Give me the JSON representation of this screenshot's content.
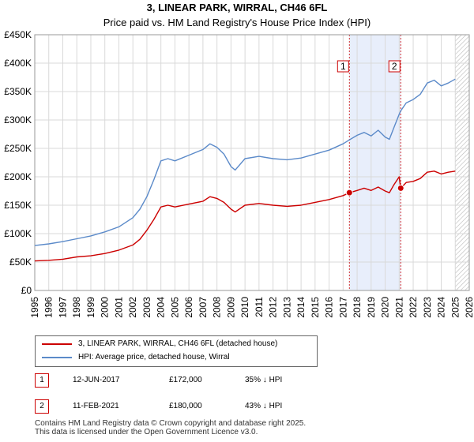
{
  "chart_data": {
    "type": "line",
    "title": "3, LINEAR PARK, WIRRAL, CH46 6FL",
    "subtitle": "Price paid vs. HM Land Registry's House Price Index (HPI)",
    "xlabel": "",
    "ylabel": "",
    "xlim": [
      1995,
      2026
    ],
    "ylim": [
      0,
      450000
    ],
    "y_ticks": [
      0,
      50000,
      100000,
      150000,
      200000,
      250000,
      300000,
      350000,
      400000,
      450000
    ],
    "y_tick_labels": [
      "£0",
      "£50K",
      "£100K",
      "£150K",
      "£200K",
      "£250K",
      "£300K",
      "£350K",
      "£400K",
      "£450K"
    ],
    "x_ticks": [
      1995,
      1996,
      1997,
      1998,
      1999,
      2000,
      2001,
      2002,
      2003,
      2004,
      2005,
      2006,
      2007,
      2008,
      2009,
      2010,
      2011,
      2012,
      2013,
      2014,
      2015,
      2016,
      2017,
      2018,
      2019,
      2020,
      2021,
      2022,
      2023,
      2024,
      2025,
      2026
    ],
    "grid": true,
    "colors": {
      "property": "#cc0000",
      "hpi": "#5b8ac9",
      "shade": "#e8eefb",
      "hatch": "#c0c0c0"
    },
    "shaded_range": [
      2017.45,
      2021.11
    ],
    "hatched_from": 2025.0,
    "series": [
      {
        "name": "3, LINEAR PARK, WIRRAL, CH46 6FL (detached house)",
        "color": "#cc0000",
        "x": [
          1995.0,
          1996.0,
          1997.0,
          1998.0,
          1999.0,
          2000.0,
          2001.0,
          2002.0,
          2002.5,
          2003.0,
          2003.5,
          2004.0,
          2004.5,
          2005.0,
          2006.0,
          2007.0,
          2007.5,
          2008.0,
          2008.5,
          2009.0,
          2009.3,
          2010.0,
          2011.0,
          2012.0,
          2013.0,
          2014.0,
          2015.0,
          2016.0,
          2017.0,
          2017.45,
          2018.0,
          2018.5,
          2019.0,
          2019.5,
          2020.0,
          2020.3,
          2020.6,
          2021.0,
          2021.11,
          2021.5,
          2022.0,
          2022.5,
          2023.0,
          2023.5,
          2024.0,
          2024.5,
          2025.0
        ],
        "y": [
          52000,
          53000,
          55000,
          59000,
          61000,
          65000,
          71000,
          80000,
          90000,
          106000,
          125000,
          147000,
          150000,
          147000,
          152000,
          157000,
          165000,
          162000,
          155000,
          143000,
          138000,
          150000,
          153000,
          150000,
          148000,
          150000,
          155000,
          160000,
          167000,
          172000,
          176000,
          180000,
          176000,
          182000,
          175000,
          172000,
          185000,
          200000,
          180000,
          190000,
          192000,
          197000,
          208000,
          210000,
          205000,
          208000,
          210000
        ]
      },
      {
        "name": "HPI: Average price, detached house, Wirral",
        "color": "#5b8ac9",
        "x": [
          1995.0,
          1996.0,
          1997.0,
          1998.0,
          1999.0,
          2000.0,
          2001.0,
          2002.0,
          2002.5,
          2003.0,
          2003.5,
          2004.0,
          2004.5,
          2005.0,
          2006.0,
          2007.0,
          2007.5,
          2008.0,
          2008.5,
          2009.0,
          2009.3,
          2010.0,
          2011.0,
          2012.0,
          2013.0,
          2014.0,
          2015.0,
          2016.0,
          2017.0,
          2017.45,
          2018.0,
          2018.5,
          2019.0,
          2019.5,
          2020.0,
          2020.3,
          2020.6,
          2021.0,
          2021.11,
          2021.5,
          2022.0,
          2022.5,
          2023.0,
          2023.5,
          2024.0,
          2024.5,
          2025.0
        ],
        "y": [
          79000,
          82000,
          86000,
          91000,
          96000,
          103000,
          112000,
          128000,
          143000,
          165000,
          195000,
          228000,
          232000,
          228000,
          238000,
          248000,
          258000,
          252000,
          240000,
          218000,
          212000,
          232000,
          236000,
          232000,
          230000,
          233000,
          240000,
          247000,
          258000,
          265000,
          273000,
          278000,
          272000,
          282000,
          270000,
          266000,
          285000,
          310000,
          316000,
          330000,
          336000,
          345000,
          365000,
          370000,
          360000,
          365000,
          372000
        ]
      }
    ],
    "annotations": [
      {
        "label": "1",
        "x": 2017.45,
        "y": 172000
      },
      {
        "label": "2",
        "x": 2021.11,
        "y": 180000
      }
    ]
  },
  "legend": {
    "property_label": "3, LINEAR PARK, WIRRAL, CH46 6FL (detached house)",
    "hpi_label": "HPI: Average price, detached house, Wirral"
  },
  "sales": [
    {
      "label": "1",
      "date": "12-JUN-2017",
      "price": "£172,000",
      "hpi_diff": "35% ↓ HPI"
    },
    {
      "label": "2",
      "date": "11-FEB-2021",
      "price": "£180,000",
      "hpi_diff": "43% ↓ HPI"
    }
  ],
  "footer": {
    "line1": "Contains HM Land Registry data © Crown copyright and database right 2025.",
    "line2": "This data is licensed under the Open Government Licence v3.0."
  }
}
